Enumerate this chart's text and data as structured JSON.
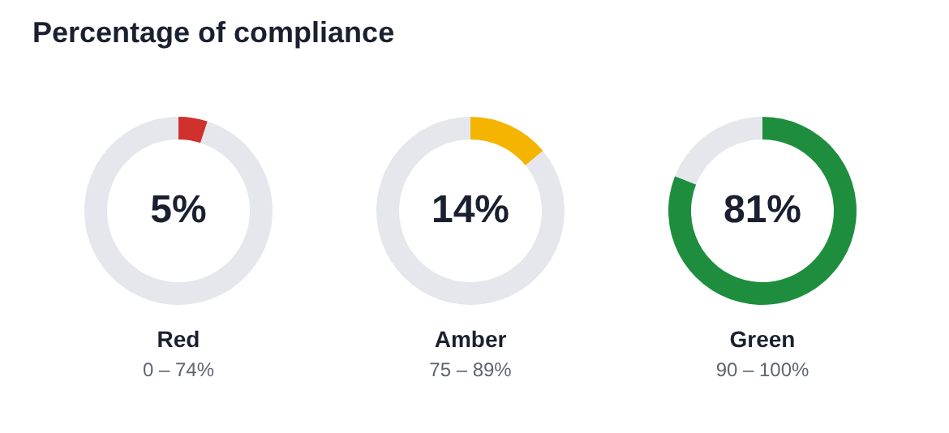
{
  "chart_data": [
    {
      "type": "donut",
      "title": "Percentage of compliance",
      "xlabel": "Red",
      "categories": [
        null,
        null
      ],
      "values": [
        5,
        95
      ],
      "colors": [
        "#d0312d",
        "#e6e7ec"
      ],
      "value_labels": [
        "5%",
        null
      ],
      "annotations": [
        "0 – 74%"
      ]
    },
    {
      "type": "donut",
      "xlabel": "Amber",
      "categories": [
        null,
        null
      ],
      "values": [
        14,
        86
      ],
      "colors": [
        "#f4b400",
        "#e6e7ec"
      ],
      "value_labels": [
        "14%",
        null
      ],
      "annotations": [
        "75 – 89%"
      ]
    },
    {
      "type": "donut",
      "xlabel": "Green",
      "categories": [
        null,
        null
      ],
      "values": [
        81,
        19
      ],
      "colors": [
        "#1e8e3e",
        "#e6e7ec"
      ],
      "value_labels": [
        "81%",
        null
      ],
      "annotations": [
        "90 – 100%"
      ]
    }
  ]
}
